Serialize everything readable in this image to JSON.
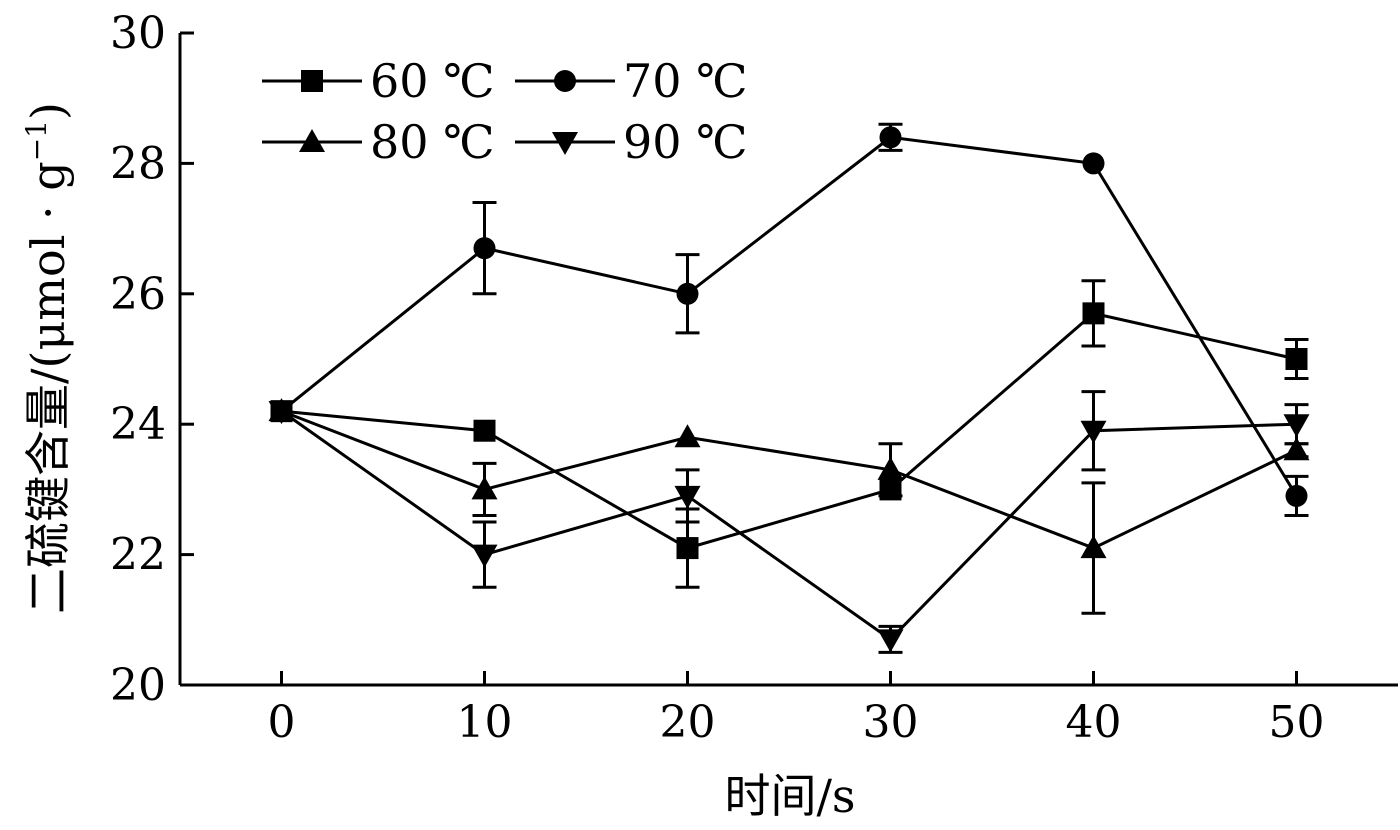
{
  "chart_data": {
    "type": "line",
    "xlabel": "时间/s",
    "ylabel": "二硫键含量/(μmol · g⁻¹)",
    "ylabel_main": "二硫键含量/(μmol · g",
    "ylabel_sup": "−1",
    "ylabel_end": ")",
    "xlim": [
      -5,
      55
    ],
    "ylim": [
      20,
      30
    ],
    "x_ticks": [
      0,
      10,
      20,
      30,
      40,
      50
    ],
    "y_ticks": [
      20,
      22,
      24,
      26,
      28,
      30
    ],
    "x": [
      0,
      10,
      20,
      30,
      40,
      50
    ],
    "legend_position": "top-left",
    "grid": false,
    "series": [
      {
        "name": "60 ℃",
        "marker": "square",
        "values": [
          24.2,
          23.9,
          22.1,
          23.0,
          25.7,
          25.0
        ],
        "errors": [
          0,
          0,
          0.6,
          0,
          0.5,
          0.3
        ]
      },
      {
        "name": "70 ℃",
        "marker": "circle",
        "values": [
          24.2,
          26.7,
          26.0,
          28.4,
          28.0,
          22.9
        ],
        "errors": [
          0,
          0.7,
          0.6,
          0.2,
          0,
          0.3
        ]
      },
      {
        "name": "80 ℃",
        "marker": "triangle-up",
        "values": [
          24.2,
          23.0,
          23.8,
          23.3,
          22.1,
          23.6
        ],
        "errors": [
          0,
          0.4,
          0,
          0.4,
          1.0,
          0.1
        ]
      },
      {
        "name": "90 ℃",
        "marker": "triangle-down",
        "values": [
          24.2,
          22.0,
          22.9,
          20.7,
          23.9,
          24.0
        ],
        "errors": [
          0,
          0.5,
          0.4,
          0.2,
          0.6,
          0.3
        ]
      }
    ],
    "colors": {
      "line": "#000000",
      "background": "#ffffff"
    }
  }
}
